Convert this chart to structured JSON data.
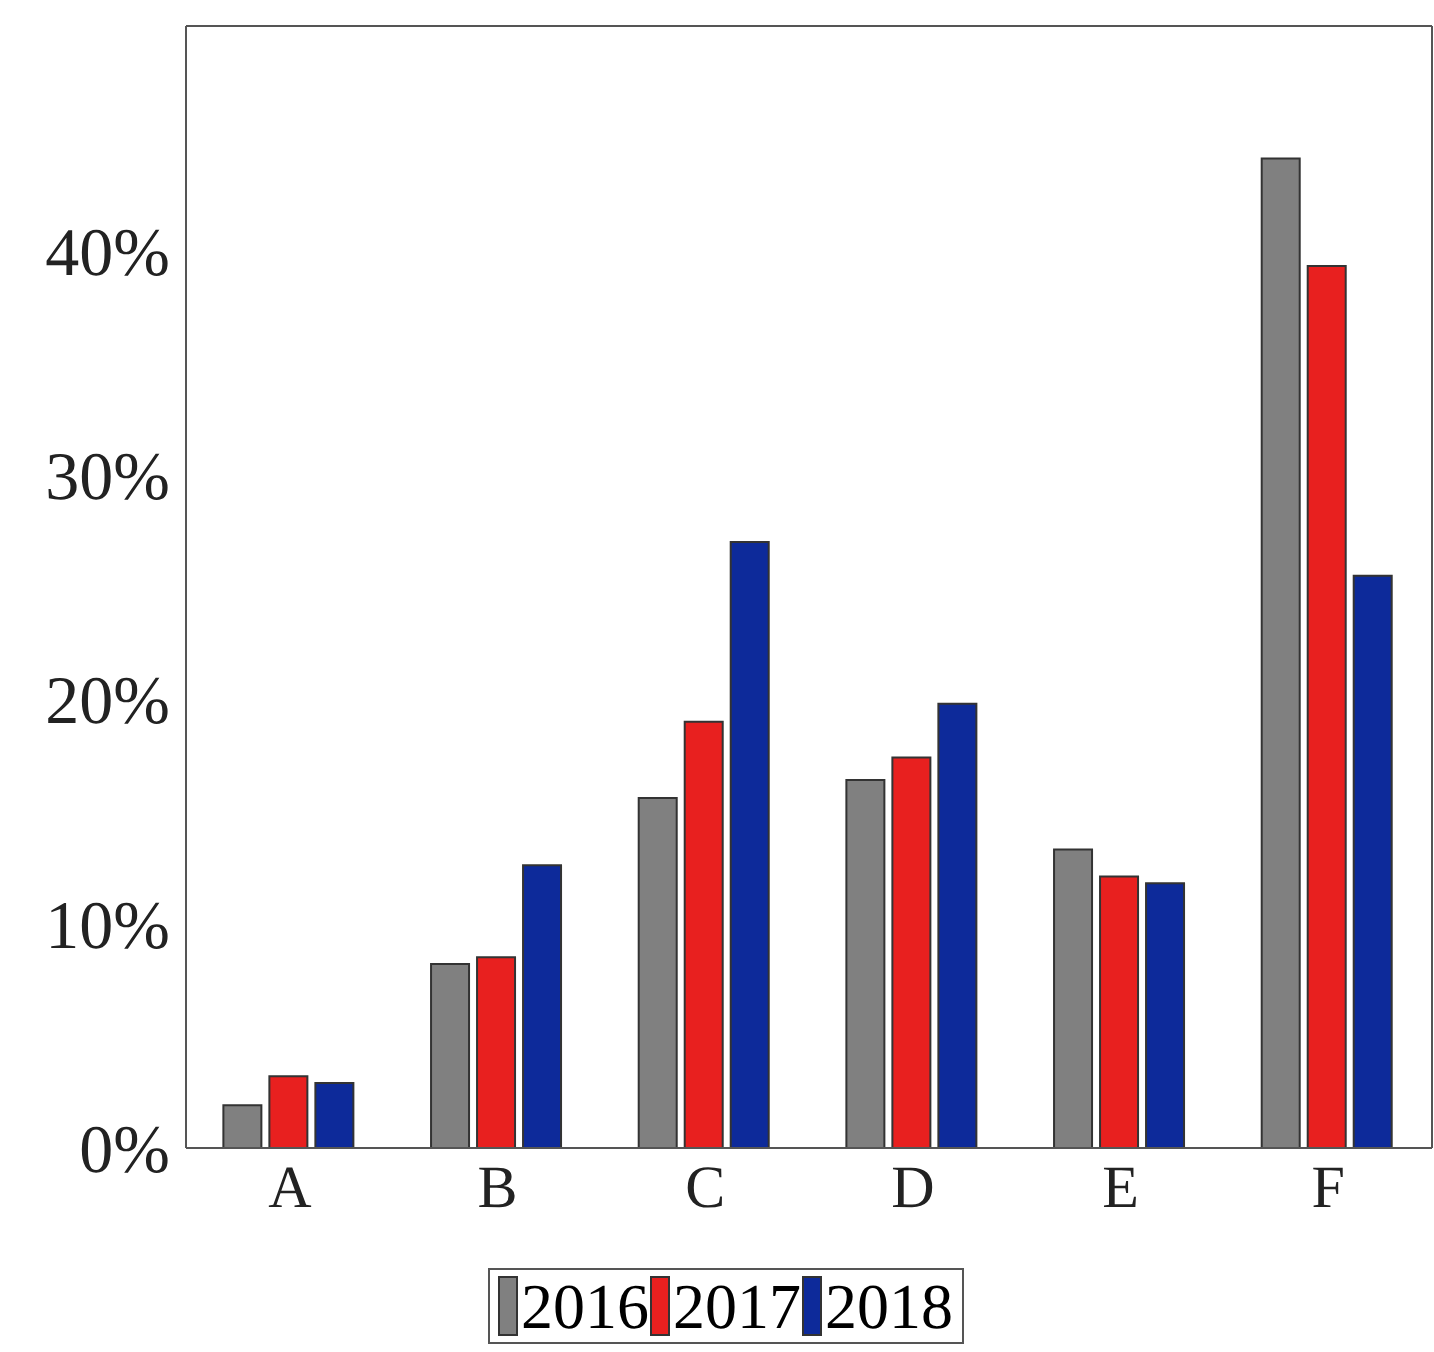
{
  "chart_data": {
    "type": "bar",
    "categories": [
      "A",
      "B",
      "C",
      "D",
      "E",
      "F"
    ],
    "series": [
      {
        "name": "2016",
        "color": "#808080",
        "values": [
          1.9,
          8.2,
          15.6,
          16.4,
          13.3,
          44.1
        ]
      },
      {
        "name": "2017",
        "color": "#e8201f",
        "values": [
          3.2,
          8.5,
          19.0,
          17.4,
          12.1,
          39.3
        ]
      },
      {
        "name": "2018",
        "color": "#0d2a9a",
        "values": [
          2.9,
          12.6,
          27.0,
          19.8,
          11.8,
          25.5
        ]
      }
    ],
    "ylim": [
      0,
      50
    ],
    "yticks": [
      {
        "value": 0,
        "label": "0%"
      },
      {
        "value": 10,
        "label": "10%"
      },
      {
        "value": 20,
        "label": "20%"
      },
      {
        "value": 30,
        "label": "30%"
      },
      {
        "value": 40,
        "label": "40%"
      }
    ],
    "grid": false,
    "legend": "bottom"
  }
}
